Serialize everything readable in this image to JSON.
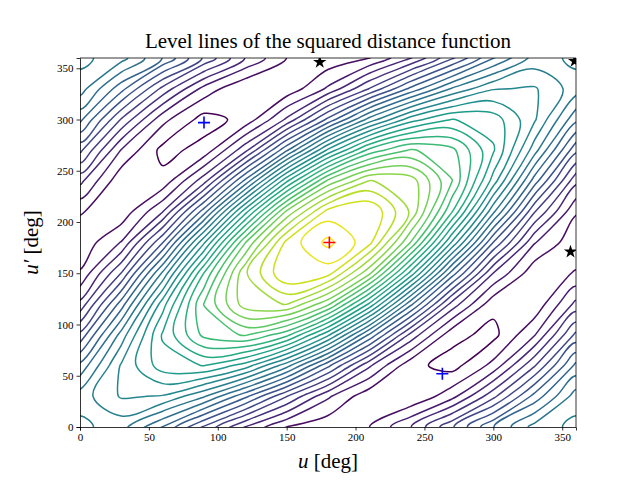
{
  "chart_data": {
    "type": "contour",
    "title": "Level lines of the squared distance function",
    "x_label": "u [deg]",
    "y_label": "u′ [deg]",
    "xlim": [
      0,
      360
    ],
    "ylim": [
      0,
      360
    ],
    "xticks": [
      0,
      50,
      100,
      150,
      200,
      250,
      300,
      350
    ],
    "yticks": [
      0,
      50,
      100,
      150,
      200,
      250,
      300,
      350
    ],
    "color": "viridis",
    "x": [
      0,
      30,
      60,
      90,
      120,
      150,
      180,
      210,
      240,
      270,
      300,
      330,
      360
    ],
    "y": [
      0,
      30,
      60,
      90,
      120,
      150,
      180,
      210,
      240,
      270,
      300,
      330,
      360
    ],
    "z": [
      [
        2.56,
        2.377,
        1.892,
        1.27,
        0.692,
        0.298,
        0.16,
        0.298,
        0.692,
        1.27,
        1.892,
        2.377,
        2.56
      ],
      [
        2.397,
        2.724,
        2.685,
        2.324,
        1.753,
        1.11,
        0.533,
        0.16,
        0.109,
        0.425,
        1.041,
        1.774,
        2.397
      ],
      [
        1.953,
        2.726,
        3.209,
        3.308,
        3.009,
        2.38,
        1.553,
        0.735,
        0.161,
        0.019,
        0.361,
        1.081,
        1.953
      ],
      [
        1.35,
        2.385,
        3.326,
        3.959,
        4.126,
        3.771,
        2.95,
        1.871,
        0.839,
        0.162,
        0.039,
        0.485,
        1.35
      ],
      [
        0.753,
        1.794,
        3.009,
        4.108,
        4.809,
        4.912,
        4.353,
        3.267,
        1.961,
        0.819,
        0.161,
        0.149,
        0.753
      ],
      [
        0.318,
        1.11,
        2.339,
        3.71,
        4.871,
        5.495,
        5.382,
        4.545,
        3.227,
        1.811,
        0.695,
        0.16,
        0.318
      ],
      [
        0.16,
        0.513,
        1.492,
        2.87,
        4.292,
        5.362,
        5.76,
        5.362,
        4.292,
        2.87,
        1.492,
        0.513,
        0.16
      ],
      [
        0.318,
        0.16,
        0.695,
        1.811,
        3.227,
        4.545,
        5.382,
        5.495,
        4.871,
        3.71,
        2.339,
        1.11,
        0.318
      ],
      [
        0.753,
        0.149,
        0.161,
        0.819,
        1.961,
        3.267,
        4.353,
        4.912,
        4.809,
        4.108,
        3.009,
        1.794,
        0.753
      ],
      [
        1.35,
        0.485,
        0.039,
        0.162,
        0.839,
        1.871,
        2.95,
        3.771,
        4.126,
        3.959,
        3.326,
        2.385,
        1.35
      ],
      [
        1.953,
        1.081,
        0.361,
        0.019,
        0.161,
        0.735,
        1.553,
        2.38,
        3.009,
        3.308,
        3.209,
        2.726,
        1.953
      ],
      [
        2.397,
        1.774,
        1.041,
        0.425,
        0.109,
        0.16,
        0.533,
        1.11,
        1.753,
        2.324,
        2.685,
        2.724,
        2.397
      ],
      [
        2.56,
        2.377,
        1.892,
        1.27,
        0.692,
        0.298,
        0.16,
        0.298,
        0.692,
        1.27,
        1.892,
        2.377,
        2.56
      ]
    ],
    "levels": [
      0.1,
      0.3,
      0.5,
      0.7,
      0.9,
      1.1,
      1.3,
      1.5,
      1.7,
      1.9,
      2.1,
      2.3,
      2.5,
      2.7,
      2.9,
      3.1,
      3.3,
      3.5,
      3.7,
      3.9,
      4.1,
      4.3,
      4.5,
      4.7,
      4.9,
      5.1,
      5.3,
      5.5,
      5.7
    ],
    "series": [
      {
        "type": "scatter",
        "marker": "plus",
        "color": "#ff0000",
        "x": [
          181
        ],
        "values": [
          180
        ]
      },
      {
        "type": "scatter",
        "marker": "plus",
        "color": "#0000ff",
        "x": [
          90,
          263
        ],
        "values": [
          297,
          52
        ]
      },
      {
        "type": "scatter",
        "marker": "star",
        "color": "#000000",
        "x": [
          174,
          356,
          359
        ],
        "values": [
          356,
          171,
          357
        ]
      }
    ]
  }
}
